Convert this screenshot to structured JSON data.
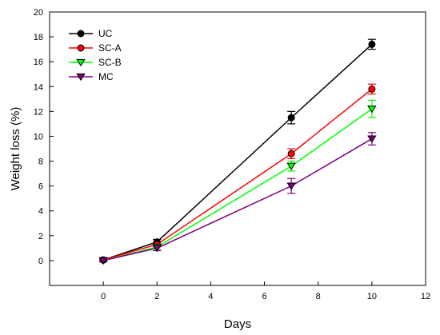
{
  "chart_data": {
    "type": "line",
    "title": "",
    "xlabel": "Days",
    "ylabel": "Weight loss (%)",
    "xlim": [
      -2,
      12
    ],
    "ylim": [
      -2,
      20
    ],
    "xticks": [
      0,
      2,
      4,
      6,
      8,
      10,
      12
    ],
    "yticks": [
      0,
      2,
      4,
      6,
      8,
      10,
      12,
      14,
      16,
      18,
      20
    ],
    "xtick_labels": [
      "0",
      "2",
      "4",
      "6",
      "8",
      "10",
      "12"
    ],
    "ytick_labels": [
      "0",
      "2",
      "4",
      "6",
      "8",
      "10",
      "12",
      "14",
      "16",
      "18",
      "20"
    ],
    "grid": false,
    "legend_position": "top-left",
    "x": [
      0,
      2,
      7,
      10
    ],
    "series": [
      {
        "name": "UC",
        "color": "#000000",
        "marker": "circle",
        "marker_fill": "#000000",
        "values": [
          0.05,
          1.5,
          11.5,
          17.4
        ],
        "errors": [
          0.1,
          0.2,
          0.5,
          0.4
        ]
      },
      {
        "name": "SC-A",
        "color": "#ff0000",
        "marker": "circle",
        "marker_fill": "#ff0000",
        "values": [
          0.05,
          1.3,
          8.6,
          13.8
        ],
        "errors": [
          0.1,
          0.2,
          0.4,
          0.4
        ]
      },
      {
        "name": "SC-B",
        "color": "#00ff00",
        "marker": "triangle-down",
        "marker_fill": "#00ff00",
        "values": [
          0.0,
          1.1,
          7.6,
          12.2
        ],
        "errors": [
          0.1,
          0.2,
          0.4,
          0.7
        ]
      },
      {
        "name": "MC",
        "color": "#800080",
        "marker": "triangle-down",
        "marker_fill": "#800080",
        "values": [
          0.0,
          1.0,
          6.0,
          9.8
        ],
        "errors": [
          0.1,
          0.2,
          0.6,
          0.5
        ]
      }
    ]
  }
}
